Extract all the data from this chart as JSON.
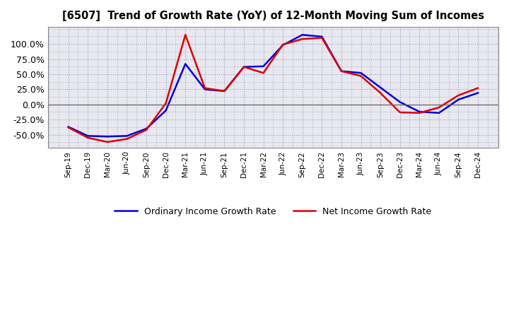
{
  "title": "[6507]  Trend of Growth Rate (YoY) of 12-Month Moving Sum of Incomes",
  "x_labels": [
    "Sep-19",
    "Dec-19",
    "Mar-20",
    "Jun-20",
    "Sep-20",
    "Dec-20",
    "Mar-21",
    "Jun-21",
    "Sep-21",
    "Dec-21",
    "Mar-22",
    "Jun-22",
    "Sep-22",
    "Dec-22",
    "Mar-23",
    "Jun-23",
    "Sep-23",
    "Dec-23",
    "Mar-24",
    "Jun-24",
    "Sep-24",
    "Dec-24"
  ],
  "ordinary_income": [
    -0.37,
    -0.52,
    -0.53,
    -0.52,
    -0.4,
    -0.1,
    0.67,
    0.25,
    0.22,
    0.62,
    0.63,
    0.98,
    1.15,
    1.12,
    0.55,
    0.52,
    0.28,
    0.04,
    -0.12,
    -0.14,
    0.08,
    0.19
  ],
  "net_income": [
    -0.38,
    -0.55,
    -0.62,
    -0.57,
    -0.42,
    0.02,
    1.15,
    0.27,
    0.22,
    0.62,
    0.52,
    0.99,
    1.08,
    1.1,
    0.55,
    0.47,
    0.19,
    -0.13,
    -0.14,
    -0.05,
    0.15,
    0.27
  ],
  "ordinary_color": "#0000dd",
  "net_income_color": "#dd0000",
  "background_color": "#ffffff",
  "plot_bg_color": "#e8e8f0",
  "grid_color": "#9999bb",
  "ylim": [
    -0.72,
    1.28
  ],
  "yticks": [
    -0.5,
    -0.25,
    0.0,
    0.25,
    0.5,
    0.75,
    1.0
  ],
  "legend_ordinary": "Ordinary Income Growth Rate",
  "legend_net": "Net Income Growth Rate",
  "linewidth": 1.8
}
